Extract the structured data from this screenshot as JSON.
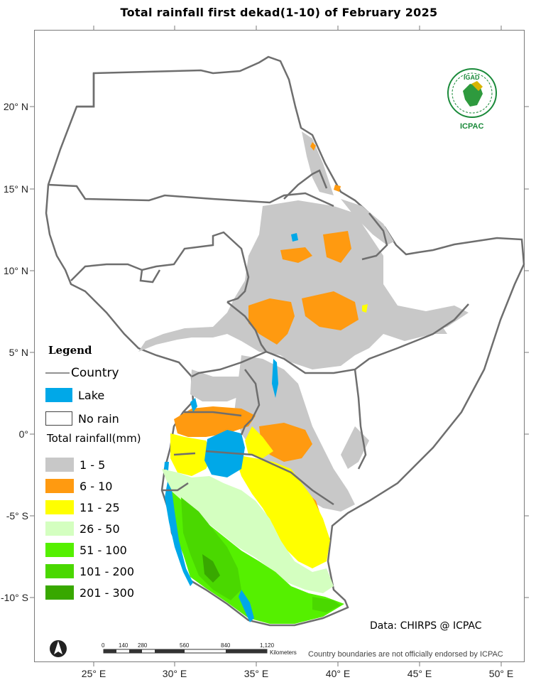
{
  "title": "Total rainfall  first dekad(1-10) of February 2025",
  "latitude_labels": [
    "20° N",
    "15° N",
    "10° N",
    "5° N",
    "0°",
    "-5° S",
    "-10° S"
  ],
  "longitude_labels": [
    "25° E",
    "30° E",
    "35° E",
    "40° E",
    "45° E",
    "50° E"
  ],
  "legend": {
    "title": "Legend",
    "country_label": "Country",
    "lake_label": "Lake",
    "no_rain_label": "No rain",
    "rainfall_heading": "Total rainfall(mm)",
    "classes": [
      {
        "label": "1 - 5",
        "color": "#c8c8c8"
      },
      {
        "label": "6 - 10",
        "color": "#ff9a10"
      },
      {
        "label": "11 - 25",
        "color": "#ffff00"
      },
      {
        "label": "26 - 50",
        "color": "#d4ffc0"
      },
      {
        "label": "51 - 100",
        "color": "#55f000"
      },
      {
        "label": "101 - 200",
        "color": "#4ad800"
      },
      {
        "label": "201 - 300",
        "color": "#38a800"
      }
    ],
    "lake_color": "#00a8e8",
    "country_color": "#6e6e6e"
  },
  "logo": {
    "top_text": "IGAD",
    "bottom_text": "ICPAC"
  },
  "scale_bar": {
    "ticks": [
      "0",
      "140",
      "280",
      "560",
      "840",
      "1,120"
    ],
    "unit": "Kilometers"
  },
  "source": "Data: CHIRPS @ ICPAC",
  "disclaimer": "Country boundaries are not officially endorsed by ICPAC"
}
